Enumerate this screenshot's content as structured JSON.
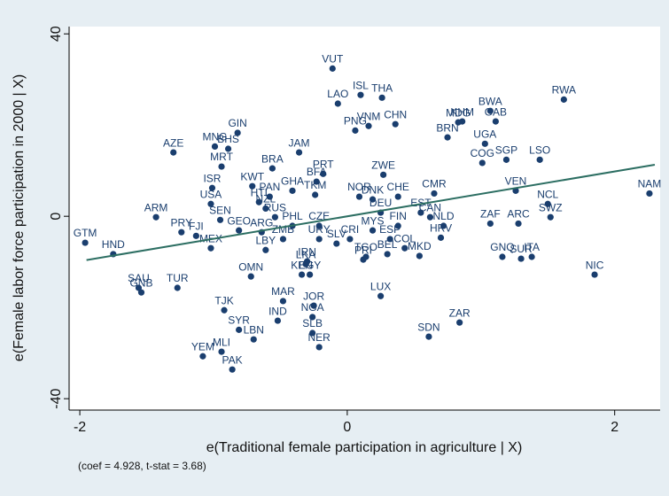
{
  "chart_data": {
    "type": "scatter",
    "x_label": "e(Traditional female participation in agriculture | X)",
    "y_label": "e(Female labor force participation in 2000 | X)",
    "annotation": "(coef = 4.928, t-stat = 3.68)",
    "xlim": [
      -2.08,
      2.34
    ],
    "ylim": [
      -42.5,
      41.6
    ],
    "xticks": [
      -2,
      0,
      2
    ],
    "yticks": [
      -40,
      0,
      40
    ],
    "fit_line": {
      "x": [
        -1.95,
        2.3
      ],
      "y": [
        -9.6,
        11.3
      ],
      "color": "#2c6e62"
    },
    "series": [
      {
        "color": "#1a3e6e",
        "labels": [
          "VUT",
          "LAO",
          "ISL",
          "THA",
          "BWA",
          "RWA",
          "KHM",
          "CHN",
          "VNM",
          "MDG",
          "GAB",
          "UGA",
          "BRN",
          "PNG",
          "MNG",
          "GIN",
          "AZE",
          "BHS",
          "MRT",
          "JAM",
          "BRA",
          "LSO",
          "SGP",
          "COG",
          "PRT",
          "BFA",
          "ZWE",
          "ISR",
          "VEN",
          "NCL",
          "NAM",
          "SWZ",
          "ZAF",
          "ARC",
          "ARM",
          "USA",
          "SEN",
          "GTM",
          "HND",
          "PRY",
          "FJI",
          "MEX",
          "GEO",
          "HTI",
          "OMN",
          "ZMB",
          "SAU",
          "TUR",
          "GNB",
          "TJK",
          "MAR",
          "JOR",
          "IND",
          "SYR",
          "LBN",
          "NGA",
          "SLB",
          "NER",
          "YEM",
          "MLI",
          "PAK",
          "EGY",
          "IRN",
          "KEN",
          "LUX",
          "SDN",
          "ZAR",
          "MKD",
          "HRV",
          "GNQ",
          "SUR",
          "ITA",
          "NIC",
          "BEL",
          "COL",
          "PRI",
          "TGO",
          "CMR",
          "GHA",
          "TKM",
          "NOR",
          "DNK",
          "CHE",
          "KWT",
          "PAN",
          "NZL",
          "RUS",
          "CZE",
          "DEU",
          "PHL",
          "URY",
          "LKA",
          "MYS",
          "FIN",
          "EST",
          "CAN",
          "ARG",
          "LBY",
          "CRI",
          "SLV",
          "ESP",
          "NLD"
        ],
        "x": [
          -0.11,
          -0.07,
          0.1,
          0.26,
          1.07,
          1.62,
          0.86,
          0.36,
          0.16,
          0.83,
          1.11,
          1.03,
          0.75,
          0.06,
          -0.99,
          -0.82,
          -1.3,
          -0.89,
          -0.94,
          -0.36,
          -0.56,
          1.44,
          1.19,
          1.01,
          -0.18,
          -0.23,
          0.27,
          -1.01,
          1.26,
          1.5,
          2.26,
          1.52,
          1.07,
          1.28,
          -1.43,
          -1.02,
          -0.95,
          -1.96,
          -1.75,
          -1.24,
          -1.13,
          -1.02,
          -0.81,
          -0.66,
          -0.72,
          -0.48,
          -1.56,
          -1.27,
          -1.54,
          -0.92,
          -0.48,
          -0.25,
          -0.52,
          -0.81,
          -0.7,
          -0.26,
          -0.26,
          -0.21,
          -1.08,
          -0.94,
          -0.86,
          -0.28,
          -0.3,
          -0.34,
          0.25,
          0.61,
          0.84,
          0.54,
          0.7,
          1.16,
          1.3,
          1.38,
          1.85,
          0.3,
          0.43,
          0.12,
          0.14,
          0.65,
          -0.41,
          -0.24,
          0.09,
          0.19,
          0.38,
          -0.71,
          -0.58,
          -0.61,
          -0.54,
          -0.21,
          0.25,
          -0.41,
          -0.21,
          -0.31,
          0.19,
          0.38,
          0.55,
          0.62,
          -0.64,
          -0.61,
          0.02,
          -0.08,
          0.32,
          0.72
        ],
        "y": [
          32.4,
          24.7,
          26.6,
          26.0,
          23.1,
          25.6,
          20.8,
          20.2,
          19.8,
          20.6,
          20.8,
          15.9,
          17.3,
          18.8,
          15.3,
          18.3,
          14.0,
          14.8,
          10.9,
          14.0,
          10.5,
          12.4,
          12.4,
          11.7,
          9.3,
          7.6,
          9.1,
          6.2,
          5.6,
          2.7,
          5.0,
          -0.2,
          -1.6,
          -1.6,
          -0.2,
          2.7,
          -0.8,
          -5.8,
          -8.3,
          -3.5,
          -4.3,
          -7.0,
          -3.1,
          3.1,
          -13.2,
          -5.0,
          -15.7,
          -15.7,
          -16.7,
          -20.6,
          -18.6,
          -19.6,
          -22.9,
          -24.9,
          -27.0,
          -22.1,
          -25.6,
          -28.7,
          -30.7,
          -29.7,
          -33.6,
          -12.8,
          -9.9,
          -12.8,
          -17.5,
          -26.4,
          -23.3,
          -8.7,
          -4.7,
          -8.9,
          -9.3,
          -8.9,
          -12.8,
          -8.3,
          -7.0,
          -9.5,
          -8.9,
          5.0,
          5.6,
          4.7,
          4.3,
          3.7,
          4.3,
          6.6,
          4.3,
          1.7,
          -0.2,
          -2.1,
          0.8,
          -2.1,
          -5.0,
          -10.5,
          -3.1,
          -2.1,
          0.8,
          -0.2,
          -3.5,
          -7.4,
          -5.0,
          -6.0,
          -5.0,
          -2.1
        ]
      }
    ]
  }
}
